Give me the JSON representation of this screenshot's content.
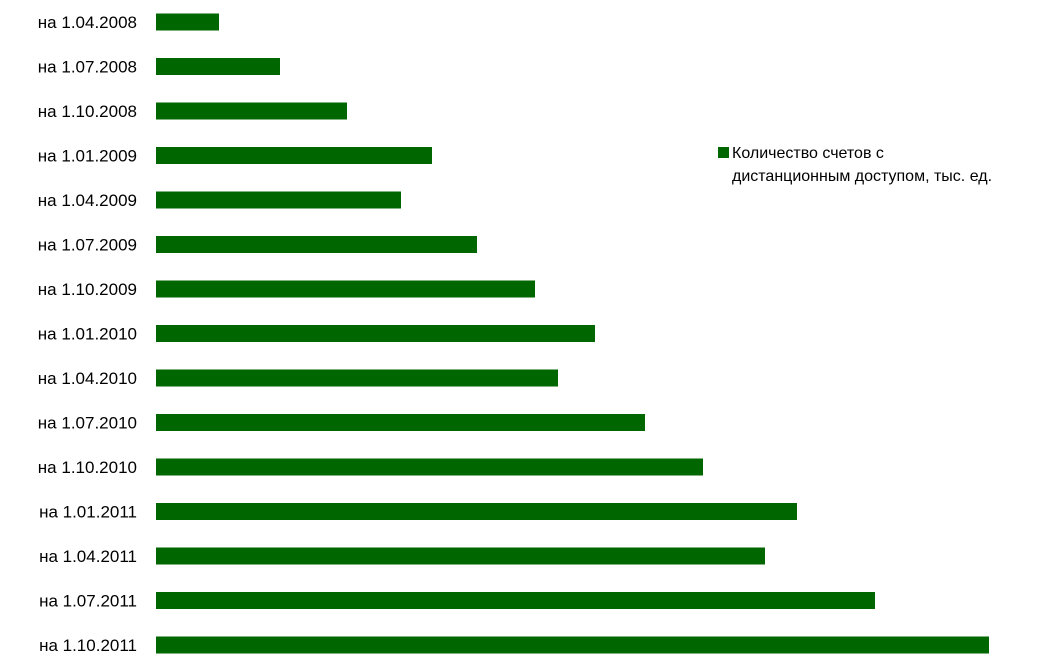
{
  "chart_data": {
    "type": "bar",
    "orientation": "horizontal",
    "categories": [
      "на 1.04.2008",
      "на 1.07.2008",
      "на 1.10.2008",
      "на 1.01.2009",
      "на 1.04.2009",
      "на 1.07.2009",
      "на 1.10.2009",
      "на 1.01.2010",
      "на 1.04.2010",
      "на 1.07.2010",
      "на 1.10.2010",
      "на 1.01.2011",
      "на 1.04.2011",
      "на 1.07.2011",
      "на 1.10.2011"
    ],
    "series": [
      {
        "name": "Количество счетов с дистанционным доступом, тыс. ед.",
        "color": "#006600",
        "values": [
          63,
          124,
          191,
          276,
          245,
          321,
          379,
          439,
          402,
          489,
          547,
          641,
          609,
          719,
          833
        ]
      }
    ],
    "legend": {
      "position": "right",
      "lines": [
        "Количество счетов с",
        "дистанционным доступом, тыс. ед."
      ]
    },
    "xlim": [
      0,
      840
    ],
    "grid": false,
    "value_axis_visible": false
  }
}
